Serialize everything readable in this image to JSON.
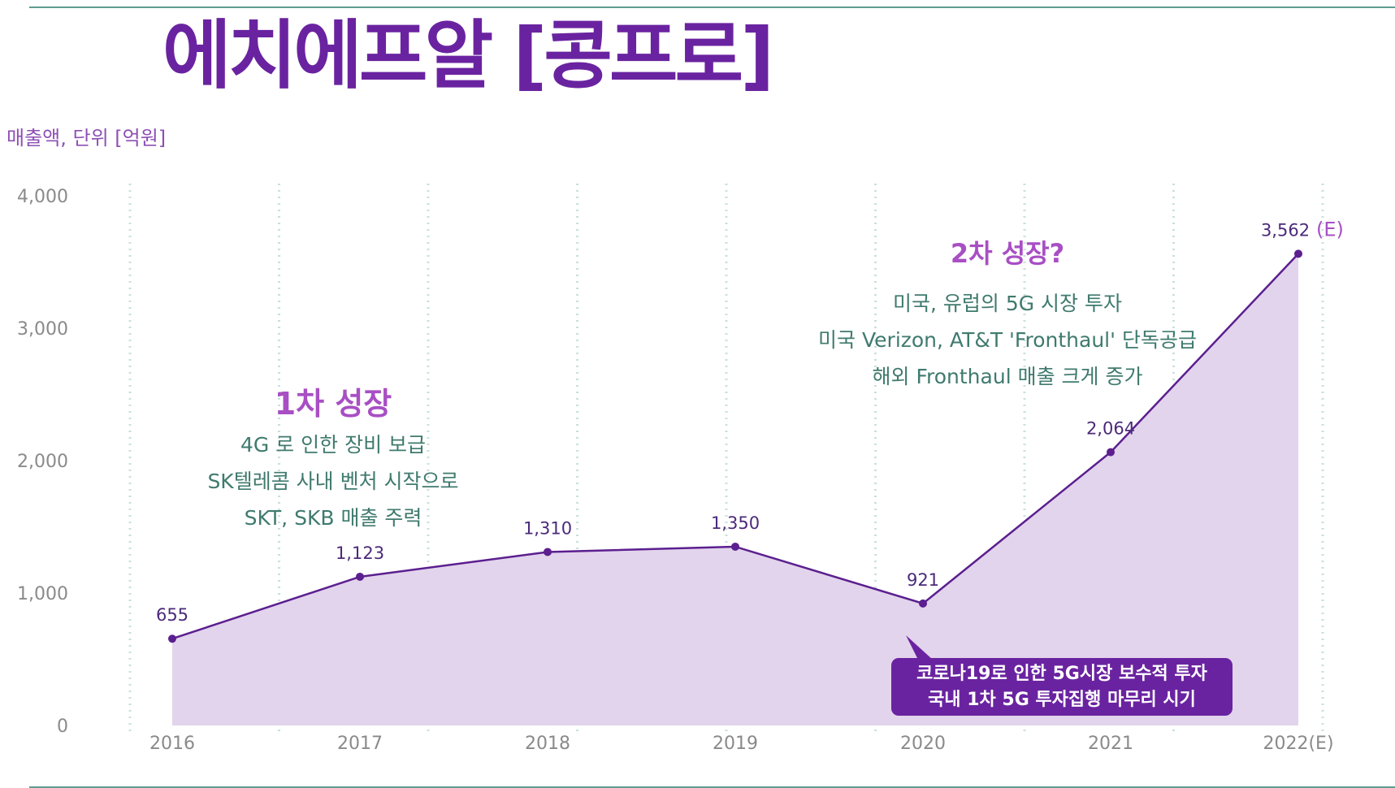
{
  "page": {
    "title": "에치에프알 [콩프로]",
    "unit_label": "매출액, 단위 [억원]"
  },
  "chart_data": {
    "type": "area",
    "title": "에치에프알 [콩프로]",
    "ylabel": "매출액, 단위 [억원]",
    "xlabel": "",
    "categories": [
      "2016",
      "2017",
      "2018",
      "2019",
      "2020",
      "2021",
      "2022(E)"
    ],
    "values": [
      655,
      1123,
      1310,
      1350,
      921,
      2064,
      3562
    ],
    "value_labels": [
      "655",
      "1,123",
      "1,310",
      "1,350",
      "921",
      "2,064",
      "3,562"
    ],
    "estimate_marker": "(E)",
    "ylim": [
      0,
      4000
    ],
    "yticks": [
      0,
      1000,
      2000,
      3000,
      4000
    ],
    "ytick_labels": [
      "0",
      "1,000",
      "2,000",
      "3,000",
      "4,000"
    ],
    "grid": "vertical dotted",
    "colors": {
      "line": "#5b1f8f",
      "fill": "#e2d4ec",
      "annotation_heading": "#a84fc4",
      "annotation_text": "#3f7a6e",
      "callout": "#6a23a0"
    },
    "annotations": [
      {
        "heading": "1차 성장",
        "lines": [
          "4G 로 인한 장비 보급",
          "SK텔레콤 사내 벤처 시작으로",
          "SKT, SKB 매출 주력"
        ]
      },
      {
        "heading": "2차 성장?",
        "lines": [
          "미국, 유럽의 5G 시장 투자",
          "미국 Verizon, AT&T 'Fronthaul' 단독공급",
          "해외 Fronthaul 매출 크게 증가"
        ]
      },
      {
        "callout": true,
        "lines": [
          "코로나19로 인한 5G시장 보수적 투자",
          "국내 1차 5G 투자집행 마무리 시기"
        ]
      }
    ]
  }
}
